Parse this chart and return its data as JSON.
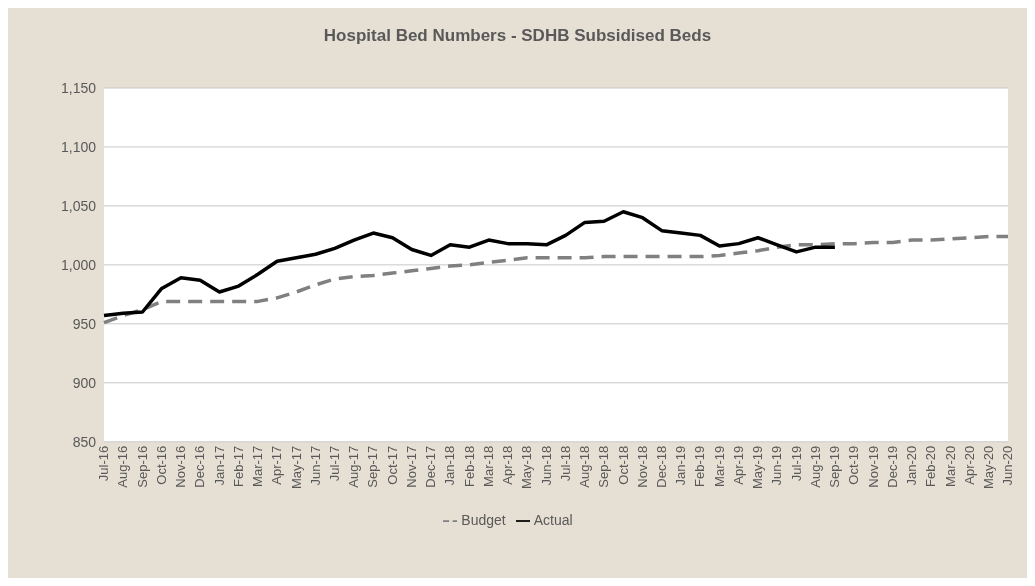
{
  "chart_data": {
    "type": "line",
    "title": "Hospital Bed Numbers - SDHB Subsidised Beds",
    "categories": [
      "Jul-16",
      "Aug-16",
      "Sep-16",
      "Oct-16",
      "Nov-16",
      "Dec-16",
      "Jan-17",
      "Feb-17",
      "Mar-17",
      "Apr-17",
      "May-17",
      "Jun-17",
      "Jul-17",
      "Aug-17",
      "Sep-17",
      "Oct-17",
      "Nov-17",
      "Dec-17",
      "Jan-18",
      "Feb-18",
      "Mar-18",
      "Apr-18",
      "May-18",
      "Jun-18",
      "Jul-18",
      "Aug-18",
      "Sep-18",
      "Oct-18",
      "Nov-18",
      "Dec-18",
      "Jan-19",
      "Feb-19",
      "Mar-19",
      "Apr-19",
      "May-19",
      "Jun-19",
      "Jul-19",
      "Aug-19",
      "Sep-19",
      "Oct-19",
      "Nov-19",
      "Dec-19",
      "Jan-20",
      "Feb-20",
      "Mar-20",
      "Apr-20",
      "May-20",
      "Jun-20"
    ],
    "series": [
      {
        "name": "Budget",
        "color": "#808080",
        "line_style": "dashed",
        "values": [
          951,
          957,
          962,
          969,
          969,
          969,
          969,
          969,
          969,
          972,
          977,
          983,
          988,
          990,
          991,
          993,
          995,
          997,
          999,
          1000,
          1002,
          1004,
          1006,
          1006,
          1006,
          1006,
          1007,
          1007,
          1007,
          1007,
          1007,
          1007,
          1008,
          1010,
          1012,
          1015,
          1017,
          1017,
          1018,
          1018,
          1019,
          1019,
          1021,
          1021,
          1022,
          1023,
          1024,
          1024
        ]
      },
      {
        "name": "Actual",
        "color": "#000000",
        "line_style": "solid",
        "values": [
          957,
          959,
          960,
          980,
          989,
          987,
          977,
          982,
          992,
          1003,
          1006,
          1009,
          1014,
          1021,
          1027,
          1023,
          1013,
          1008,
          1017,
          1015,
          1021,
          1018,
          1018,
          1017,
          1025,
          1036,
          1037,
          1045,
          1040,
          1029,
          1027,
          1025,
          1016,
          1018,
          1023,
          1017,
          1011,
          1015,
          1015,
          null,
          null,
          null,
          null,
          null,
          null,
          null,
          null,
          null
        ]
      }
    ],
    "ylim": [
      850,
      1150
    ],
    "yticks": [
      {
        "value": 850,
        "label": "850"
      },
      {
        "value": 900,
        "label": "900"
      },
      {
        "value": 950,
        "label": "950"
      },
      {
        "value": 1000,
        "label": "1,000"
      },
      {
        "value": 1050,
        "label": "1,050"
      },
      {
        "value": 1100,
        "label": "1,100"
      },
      {
        "value": 1150,
        "label": "1,150"
      }
    ],
    "grid": "y",
    "legend": "bottom",
    "marker": "none"
  }
}
